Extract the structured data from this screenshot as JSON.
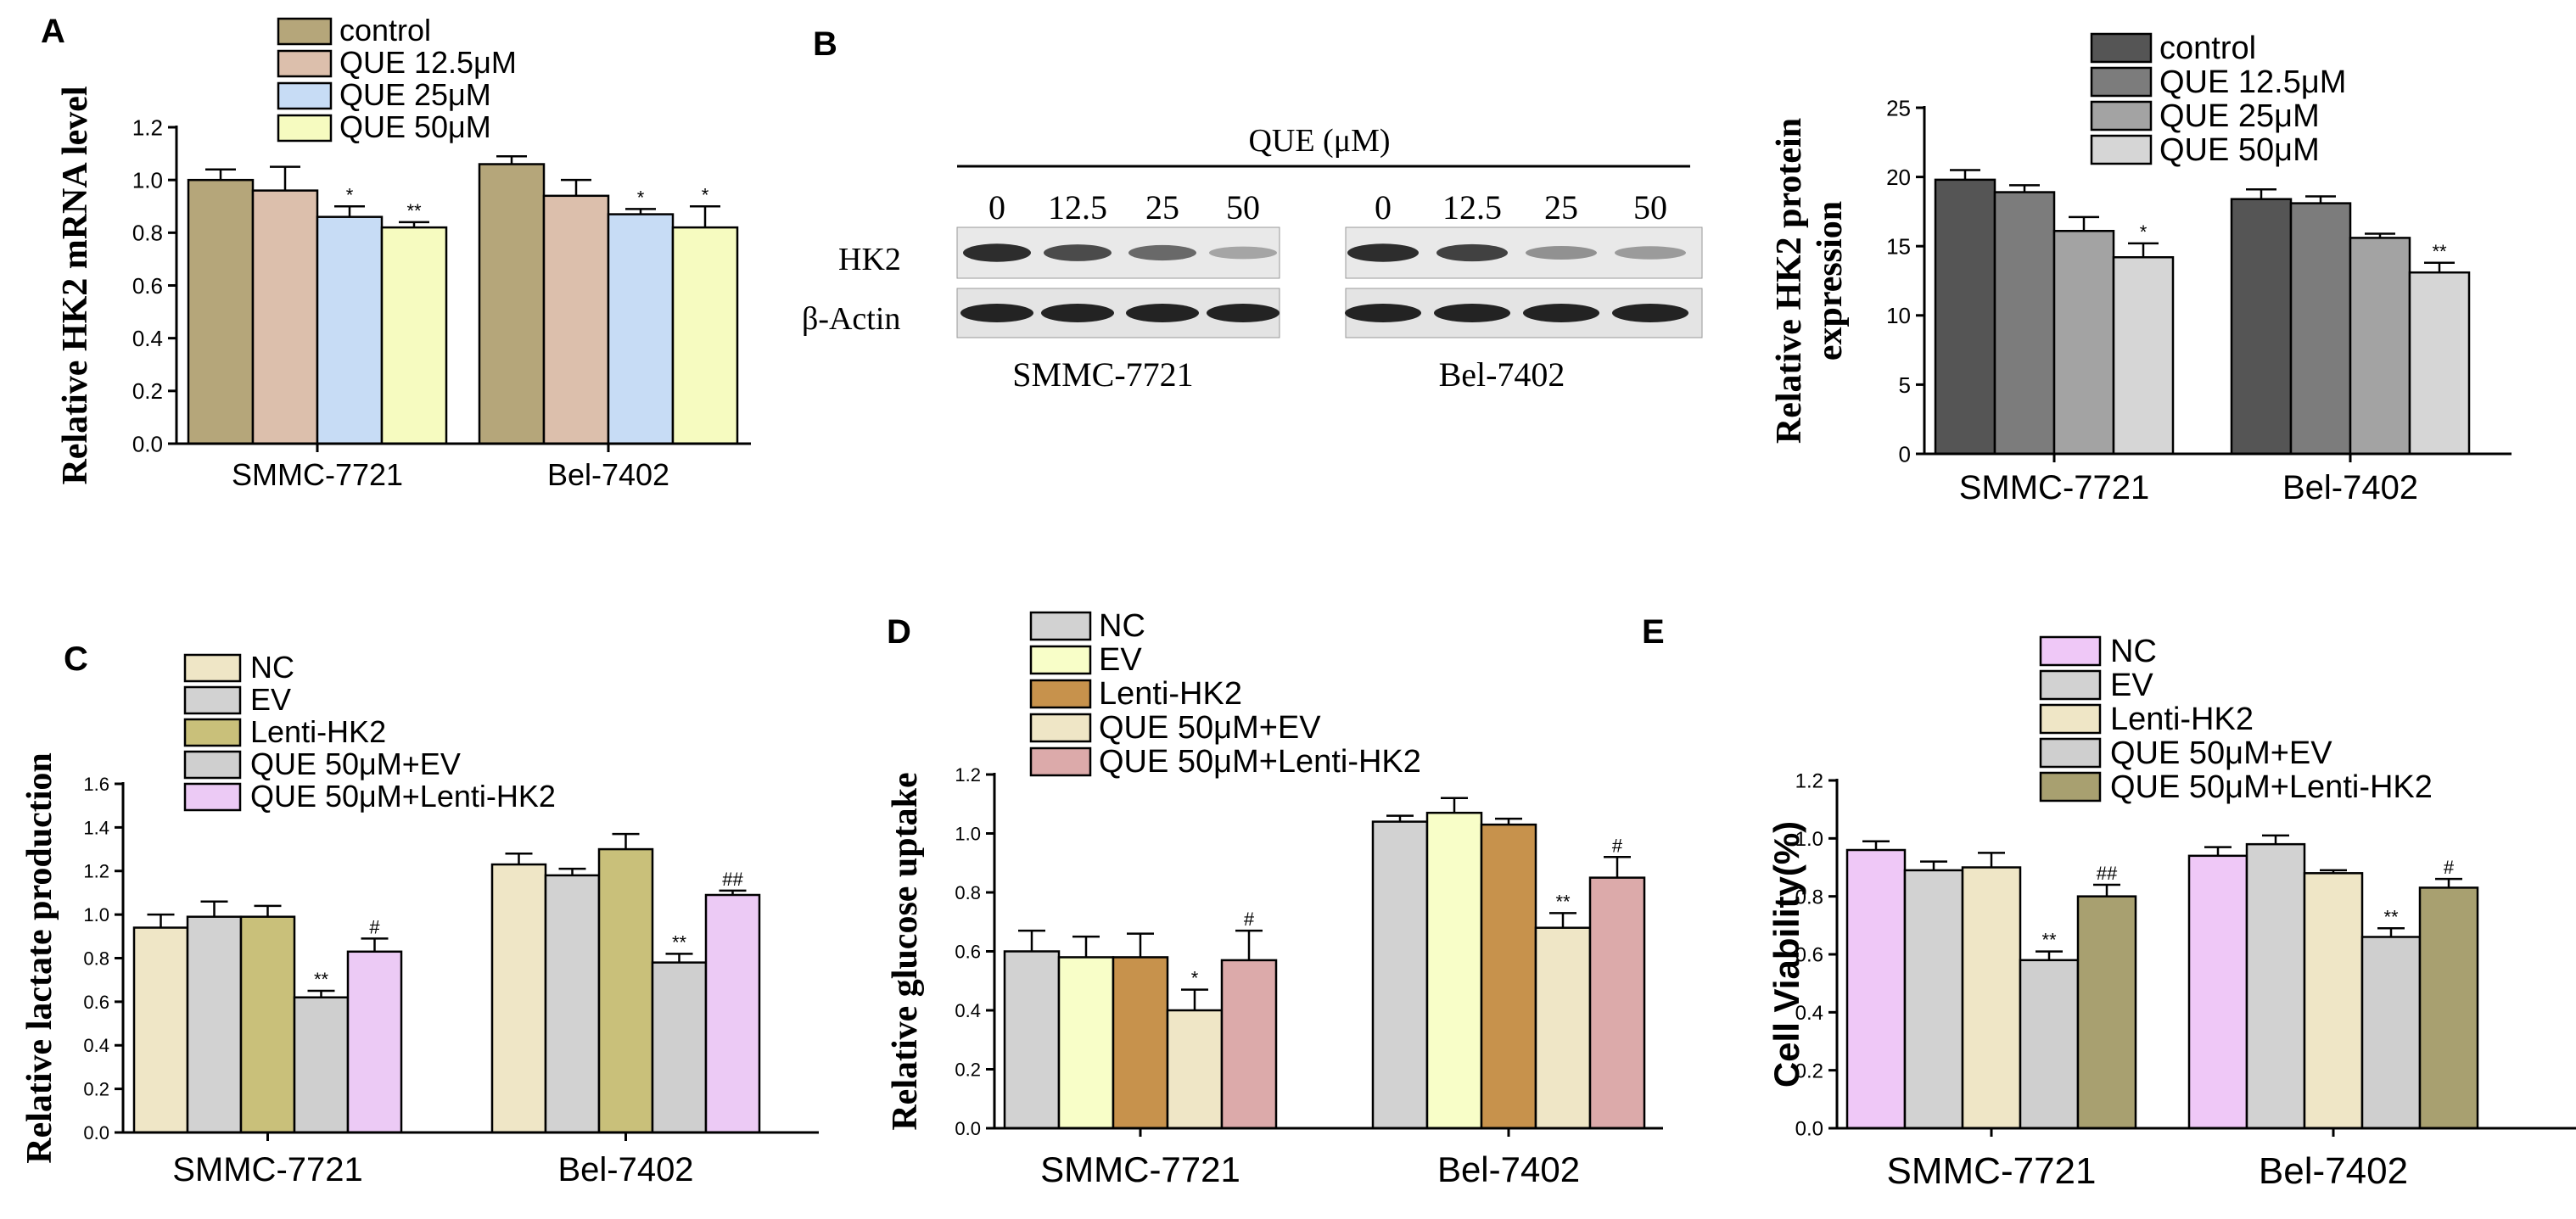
{
  "panel_letters": [
    "A",
    "B",
    "C",
    "D",
    "E"
  ],
  "colors": {
    "control_A": "#b5a67a",
    "que125_A": "#dcbfac",
    "que25_A": "#c7dcf5",
    "que50_A": "#f6fbc0",
    "control_B": "#555555",
    "que125_B": "#7c7c7c",
    "que25_B": "#a3a3a3",
    "que50_B": "#d6d6d6",
    "cream": "#efe6c6",
    "grey": "#d2d2d2",
    "olive": "#c9c07a",
    "pink": "#eccaf5",
    "yellow": "#f8fec8",
    "brown": "#c7924c",
    "rose": "#dcaaaa",
    "khaki": "#a8a070",
    "magenta_light": "#efc8f7"
  },
  "chart_data": [
    {
      "panel": "A",
      "type": "bar",
      "categories": [
        "SMMC-7721",
        "Bel-7402"
      ],
      "ylabel": "Relative HK2 mRNA level",
      "ylim": [
        0,
        1.2
      ],
      "yticks": [
        "0.0",
        "0.2",
        "0.4",
        "0.6",
        "0.8",
        "1.0",
        "1.2"
      ],
      "legend_position": "top-left",
      "series": [
        {
          "name": "control",
          "values": [
            1.0,
            1.06
          ],
          "errors": [
            0.04,
            0.03
          ],
          "sig": [
            "",
            ""
          ],
          "color": "#b5a67a"
        },
        {
          "name": "QUE 12.5μM",
          "values": [
            0.96,
            0.94
          ],
          "errors": [
            0.09,
            0.06
          ],
          "sig": [
            "",
            ""
          ],
          "color": "#dcbfac"
        },
        {
          "name": "QUE 25μM",
          "values": [
            0.86,
            0.87
          ],
          "errors": [
            0.04,
            0.02
          ],
          "sig": [
            "*",
            "*"
          ],
          "color": "#c7dcf5"
        },
        {
          "name": "QUE 50μM",
          "values": [
            0.82,
            0.82
          ],
          "errors": [
            0.02,
            0.08
          ],
          "sig": [
            "**",
            "*"
          ],
          "color": "#f6fbc0"
        }
      ]
    },
    {
      "panel": "B",
      "type": "bar",
      "categories": [
        "SMMC-7721",
        "Bel-7402"
      ],
      "ylabel": "Relative HK2 protein expression",
      "ylim": [
        0,
        25
      ],
      "yticks": [
        "0",
        "5",
        "10",
        "15",
        "20",
        "25"
      ],
      "legend_position": "top-right",
      "series": [
        {
          "name": "control",
          "values": [
            19.8,
            18.4
          ],
          "errors": [
            0.7,
            0.7
          ],
          "sig": [
            "",
            ""
          ],
          "color": "#555555"
        },
        {
          "name": "QUE 12.5μM",
          "values": [
            18.9,
            18.1
          ],
          "errors": [
            0.5,
            0.5
          ],
          "sig": [
            "",
            ""
          ],
          "color": "#7c7c7c"
        },
        {
          "name": "QUE 25μM",
          "values": [
            16.1,
            15.6
          ],
          "errors": [
            1.0,
            0.3
          ],
          "sig": [
            "",
            ""
          ],
          "color": "#a3a3a3"
        },
        {
          "name": "QUE 50μM",
          "values": [
            14.2,
            13.1
          ],
          "errors": [
            1.0,
            0.7
          ],
          "sig": [
            "*",
            "**"
          ],
          "color": "#d6d6d6"
        }
      ]
    },
    {
      "panel": "C",
      "type": "bar",
      "categories": [
        "SMMC-7721",
        "Bel-7402"
      ],
      "ylabel": "Relative lactate production",
      "ylim": [
        0,
        1.6
      ],
      "yticks": [
        "0.0",
        "0.2",
        "0.4",
        "0.6",
        "0.8",
        "1.0",
        "1.2",
        "1.4",
        "1.6"
      ],
      "legend_position": "top-left",
      "series": [
        {
          "name": "NC",
          "values": [
            0.94,
            1.23
          ],
          "errors": [
            0.06,
            0.05
          ],
          "sig": [
            "",
            ""
          ],
          "color": "#efe6c6"
        },
        {
          "name": "EV",
          "values": [
            0.99,
            1.18
          ],
          "errors": [
            0.07,
            0.03
          ],
          "sig": [
            "",
            ""
          ],
          "color": "#d2d2d2"
        },
        {
          "name": "Lenti-HK2",
          "values": [
            0.99,
            1.3
          ],
          "errors": [
            0.05,
            0.07
          ],
          "sig": [
            "",
            ""
          ],
          "color": "#c9c07a"
        },
        {
          "name": "QUE 50μM+EV",
          "values": [
            0.62,
            0.78
          ],
          "errors": [
            0.03,
            0.04
          ],
          "sig": [
            "**",
            "**"
          ],
          "color": "#cfcfcf"
        },
        {
          "name": "QUE 50μM+Lenti-HK2",
          "values": [
            0.83,
            1.09
          ],
          "errors": [
            0.06,
            0.02
          ],
          "sig": [
            "#",
            "##"
          ],
          "color": "#eccaf5"
        }
      ]
    },
    {
      "panel": "D",
      "type": "bar",
      "categories": [
        "SMMC-7721",
        "Bel-7402"
      ],
      "ylabel": "Relative glucose uptake",
      "ylim": [
        0,
        1.2
      ],
      "yticks": [
        "0.0",
        "0.2",
        "0.4",
        "0.6",
        "0.8",
        "1.0",
        "1.2"
      ],
      "legend_position": "top-left",
      "series": [
        {
          "name": "NC",
          "values": [
            0.6,
            1.04
          ],
          "errors": [
            0.07,
            0.02
          ],
          "sig": [
            "",
            ""
          ],
          "color": "#d2d2d2"
        },
        {
          "name": "EV",
          "values": [
            0.58,
            1.07
          ],
          "errors": [
            0.07,
            0.05
          ],
          "sig": [
            "",
            ""
          ],
          "color": "#f8fec8"
        },
        {
          "name": "Lenti-HK2",
          "values": [
            0.58,
            1.03
          ],
          "errors": [
            0.08,
            0.02
          ],
          "sig": [
            "",
            ""
          ],
          "color": "#c7924c"
        },
        {
          "name": "QUE 50μM+EV",
          "values": [
            0.4,
            0.68
          ],
          "errors": [
            0.07,
            0.05
          ],
          "sig": [
            "*",
            "**"
          ],
          "color": "#efe6c6"
        },
        {
          "name": "QUE 50μM+Lenti-HK2",
          "values": [
            0.57,
            0.85
          ],
          "errors": [
            0.1,
            0.07
          ],
          "sig": [
            "#",
            "#"
          ],
          "color": "#dcaaaa"
        }
      ]
    },
    {
      "panel": "E",
      "type": "bar",
      "categories": [
        "SMMC-7721",
        "Bel-7402"
      ],
      "ylabel": "Cell Viability(%)",
      "ylim": [
        0,
        1.2
      ],
      "yticks": [
        "0.0",
        "0.2",
        "0.4",
        "0.6",
        "0.8",
        "1.0",
        "1.2"
      ],
      "legend_position": "top-right",
      "series": [
        {
          "name": "NC",
          "values": [
            0.96,
            0.94
          ],
          "errors": [
            0.03,
            0.03
          ],
          "sig": [
            "",
            ""
          ],
          "color": "#efc8f7"
        },
        {
          "name": "EV",
          "values": [
            0.89,
            0.98
          ],
          "errors": [
            0.03,
            0.03
          ],
          "sig": [
            "",
            ""
          ],
          "color": "#d2d2d2"
        },
        {
          "name": "Lenti-HK2",
          "values": [
            0.9,
            0.88
          ],
          "errors": [
            0.05,
            0.01
          ],
          "sig": [
            "",
            ""
          ],
          "color": "#efe6c6"
        },
        {
          "name": "QUE 50μM+EV",
          "values": [
            0.58,
            0.66
          ],
          "errors": [
            0.03,
            0.03
          ],
          "sig": [
            "**",
            "**"
          ],
          "color": "#cfcfcf"
        },
        {
          "name": "QUE 50μM+Lenti-HK2",
          "values": [
            0.8,
            0.83
          ],
          "errors": [
            0.04,
            0.03
          ],
          "sig": [
            "##",
            "#"
          ],
          "color": "#a8a070"
        }
      ]
    }
  ],
  "blot": {
    "header": "QUE (μM)",
    "lanes": [
      "0",
      "12.5",
      "25",
      "50"
    ],
    "rows": [
      "HK2",
      "β-Actin"
    ],
    "groups": [
      "SMMC-7721",
      "Bel-7402"
    ],
    "hk2_intensity_smmc": [
      0.95,
      0.8,
      0.65,
      0.35
    ],
    "hk2_intensity_bel": [
      0.95,
      0.85,
      0.45,
      0.4
    ],
    "actin_intensity": [
      1.0,
      1.0,
      1.0,
      1.0
    ]
  }
}
